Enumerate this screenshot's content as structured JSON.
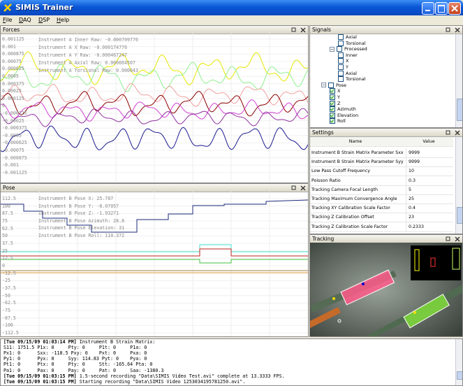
{
  "window": {
    "title": "SIMIS Trainer"
  },
  "menu": [
    "File",
    "DAQ",
    "DSP",
    "Help"
  ],
  "forces": {
    "title": "Forces",
    "axis_labels": [
      "0.001125",
      "0.001",
      "0.000875",
      "0.00075",
      "0.000625",
      "0.0005",
      "0.000375",
      "0.00025",
      "0.000125",
      "0",
      "-0.000125",
      "-0.00025",
      "-0.000375",
      "-0.0005",
      "-0.000625",
      "-0.00075",
      "-0.000875",
      "-0.001",
      "-0.001125"
    ],
    "readouts": [
      "Instrument A Inner Raw: -0.000709776",
      "Instrument A X Raw: -0.000174776",
      "Instrument A Y Raw: -0.000467247",
      "Instrument A Axial Raw: 0.000664507",
      "Instrument A Torsional Raw: 0.000043"
    ]
  },
  "pose": {
    "title": "Pose",
    "axis_labels": [
      "112.5",
      "100",
      "87.5",
      "75",
      "62.5",
      "50",
      "37.5",
      "25",
      "12.5",
      "0",
      "-12.5",
      "-25",
      "-37.5",
      "-50",
      "-62.5",
      "-75",
      "-87.5",
      "-100",
      "-112.5"
    ],
    "readouts": [
      "Instrument B Pose X: 25.787",
      "Instrument B Pose Y: -8.07057",
      "Instrument B Pose Z: -1.93271",
      "Instrument B Pose Azimuth: 28.8",
      "Instrument B Pose Elevation: 31",
      "Instrument B Pose Roll: 110.372"
    ]
  },
  "signals": {
    "title": "Signals",
    "items": [
      {
        "label": "Axial",
        "depth": 3,
        "checked": false
      },
      {
        "label": "Torsional",
        "depth": 3,
        "checked": false
      },
      {
        "label": "Processed",
        "depth": 2,
        "checked": false,
        "expanded": true
      },
      {
        "label": "Inner",
        "depth": 3,
        "checked": false
      },
      {
        "label": "X",
        "depth": 3,
        "checked": false
      },
      {
        "label": "Y",
        "depth": 3,
        "checked": false
      },
      {
        "label": "Axial",
        "depth": 3,
        "checked": false
      },
      {
        "label": "Torsional",
        "depth": 3,
        "checked": false
      },
      {
        "label": "Pose",
        "depth": 1,
        "checked": false,
        "expanded": true
      },
      {
        "label": "X",
        "depth": 2,
        "checked": true
      },
      {
        "label": "Y",
        "depth": 2,
        "checked": true
      },
      {
        "label": "Z",
        "depth": 2,
        "checked": true
      },
      {
        "label": "Azimuth",
        "depth": 2,
        "checked": true
      },
      {
        "label": "Elevation",
        "depth": 2,
        "checked": true
      },
      {
        "label": "Roll",
        "depth": 2,
        "checked": true
      }
    ]
  },
  "settings": {
    "title": "Settings",
    "columns": [
      "Name",
      "Value"
    ],
    "rows": [
      [
        "Instrument B Strain Matrix Parameter Sxx",
        "9999"
      ],
      [
        "Instrument B Strain Matrix Parameter Syy",
        "9999"
      ],
      [
        "Low Pass Cutoff Frequency",
        "10"
      ],
      [
        "Poisson Ratio",
        "0.3"
      ],
      [
        "Tracking Camera Focal Length",
        "5"
      ],
      [
        "Tracking Maximum Convergence Angle",
        "25"
      ],
      [
        "Tracking XY Calibration Scale Factor",
        "0.4"
      ],
      [
        "Tracking Z Calibration Offset",
        "23"
      ],
      [
        "Tracking Z Calibration Scale Factor",
        "0.2333"
      ]
    ]
  },
  "tracking": {
    "title": "Tracking"
  },
  "log": {
    "lines": [
      {
        "time": "[Tue 09/15/09 01:03:14 PM]",
        "text": " Instrument B Strain Matrix:"
      },
      {
        "text": "S11: 1751.5 P1x: 0     Pty: 0     P1t: 0     P1a: 0"
      },
      {
        "text": "Px1: 0      Sxx: -118.5 Pxy: 0    Pxt: 0     Pxa: 0"
      },
      {
        "text": "Py1: 0      Pyx: 0     Syy: 114.83 Pyt: 0    Pya: 0"
      },
      {
        "text": "Pt1: 0      Ptx: 0     Pty: 0     Stt: -165.64 Pta: 0"
      },
      {
        "text": "Pa1: 0      Pax: 0     Pay: 0     Pat: 0     Saa: -1380.3"
      },
      {
        "time": "[Tue 09/15/09 01:03:15 PM]",
        "text": " 1.5-second recording \"Data\\SIMIS Video Test.avi\" complete at 13.3333 FPS."
      },
      {
        "time": "[Tue 09/15/09 01:03:15 PM]",
        "text": " Starting recording \"Data\\SIMIS Video 1253034195781250.avi\"."
      }
    ]
  }
}
